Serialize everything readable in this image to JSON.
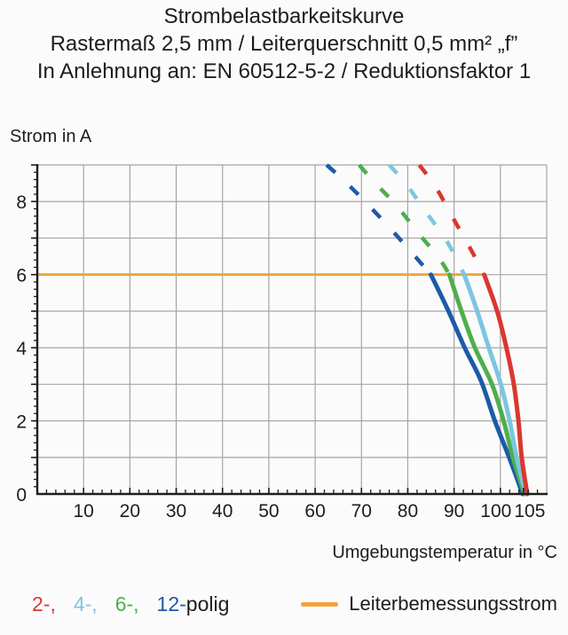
{
  "title": {
    "line1": "Strombelastbarkeitskurve",
    "line2": "Rastermaß 2,5 mm / Leiterquerschnitt 0,5 mm² „f”",
    "line3": "In Anlehnung an: EN 60512-5-2 / Reduktionsfaktor 1"
  },
  "chart_data": {
    "type": "line",
    "title": "Strombelastbarkeitskurve",
    "xlabel": "Umgebungstemperatur in °C",
    "ylabel": "Strom in A",
    "xlim": [
      0,
      110
    ],
    "ylim": [
      0,
      9
    ],
    "grid": "on",
    "x_major_grid_step": 10,
    "y_major_grid_step": 1,
    "x_minor_tick_step": 2,
    "y_minor_tick_step": 0.2,
    "x_ticks": [
      {
        "v": 10,
        "label": "10"
      },
      {
        "v": 20,
        "label": "20"
      },
      {
        "v": 30,
        "label": "30"
      },
      {
        "v": 40,
        "label": "40"
      },
      {
        "v": 50,
        "label": "50"
      },
      {
        "v": 60,
        "label": "60"
      },
      {
        "v": 70,
        "label": "70"
      },
      {
        "v": 80,
        "label": "80"
      },
      {
        "v": 90,
        "label": "90"
      },
      {
        "v": 100,
        "label": "100",
        "dx": -5
      },
      {
        "v": 105,
        "label": "105",
        "dx": 7
      }
    ],
    "y_ticks": [
      {
        "v": 0,
        "label": "0"
      },
      {
        "v": 2,
        "label": "2"
      },
      {
        "v": 4,
        "label": "4"
      },
      {
        "v": 6,
        "label": "6"
      },
      {
        "v": 8,
        "label": "8"
      }
    ],
    "reference_line": {
      "label": "Leiterbemessungsstrom",
      "color": "#f0a43f",
      "y": 6,
      "x_start": 0,
      "x_end": 96.5
    },
    "series": [
      {
        "name": "12-polig",
        "color": "#1e5aa7",
        "line_style_above_reference": "dashed",
        "dashed": [
          [
            62.5,
            9
          ],
          [
            66,
            8.6
          ],
          [
            70,
            8.1
          ],
          [
            74.5,
            7.5
          ],
          [
            79.5,
            6.8
          ],
          [
            85,
            6
          ]
        ],
        "solid": [
          [
            85,
            6
          ],
          [
            88.8,
            5
          ],
          [
            92.3,
            4
          ],
          [
            95.8,
            3.1
          ],
          [
            98.8,
            2
          ],
          [
            101.9,
            1
          ],
          [
            104.8,
            0
          ]
        ]
      },
      {
        "name": "6-polig",
        "color": "#4fae4e",
        "line_style_above_reference": "dashed",
        "dashed": [
          [
            69.5,
            9
          ],
          [
            73,
            8.5
          ],
          [
            77.5,
            7.9
          ],
          [
            82.5,
            7.1
          ],
          [
            86.5,
            6.5
          ],
          [
            89,
            6
          ]
        ],
        "solid": [
          [
            89,
            6
          ],
          [
            91.6,
            5
          ],
          [
            94.5,
            4
          ],
          [
            98.2,
            3
          ],
          [
            100.7,
            2
          ],
          [
            102.7,
            1
          ],
          [
            105.2,
            0
          ]
        ]
      },
      {
        "name": "4-polig",
        "color": "#7cc6e0",
        "line_style_above_reference": "dashed",
        "dashed": [
          [
            76,
            9
          ],
          [
            79.5,
            8.5
          ],
          [
            84,
            7.7
          ],
          [
            88.5,
            6.9
          ],
          [
            92.2,
            6
          ]
        ],
        "solid": [
          [
            92.2,
            6
          ],
          [
            95,
            5
          ],
          [
            97.5,
            4
          ],
          [
            100.1,
            3
          ],
          [
            102,
            2
          ],
          [
            103.5,
            1
          ],
          [
            105.5,
            0
          ]
        ]
      },
      {
        "name": "2-polig",
        "color": "#da372f",
        "line_style_above_reference": "dashed",
        "dashed": [
          [
            82.5,
            9
          ],
          [
            86,
            8.4
          ],
          [
            90,
            7.5
          ],
          [
            94,
            6.6
          ],
          [
            96.5,
            6
          ]
        ],
        "solid": [
          [
            96.5,
            6
          ],
          [
            99.3,
            5
          ],
          [
            101.3,
            4
          ],
          [
            102.9,
            3
          ],
          [
            103.9,
            2
          ],
          [
            104.6,
            1
          ],
          [
            105.8,
            0
          ]
        ]
      }
    ]
  },
  "legend": {
    "poles": [
      {
        "label": "2-,",
        "color": "#da372f"
      },
      {
        "label": "4-,",
        "color": "#7cc6e0"
      },
      {
        "label": "6-,",
        "color": "#4fae4e"
      },
      {
        "label": "12-",
        "color": "#1e5aa7"
      }
    ],
    "suffix": "polig",
    "reference_label": "Leiterbemessungsstrom"
  },
  "colors": {
    "grid": "#a5a5a5",
    "axis": "#1d1d1b",
    "text": "#1d1d1b",
    "background": "#fbfbfb"
  }
}
